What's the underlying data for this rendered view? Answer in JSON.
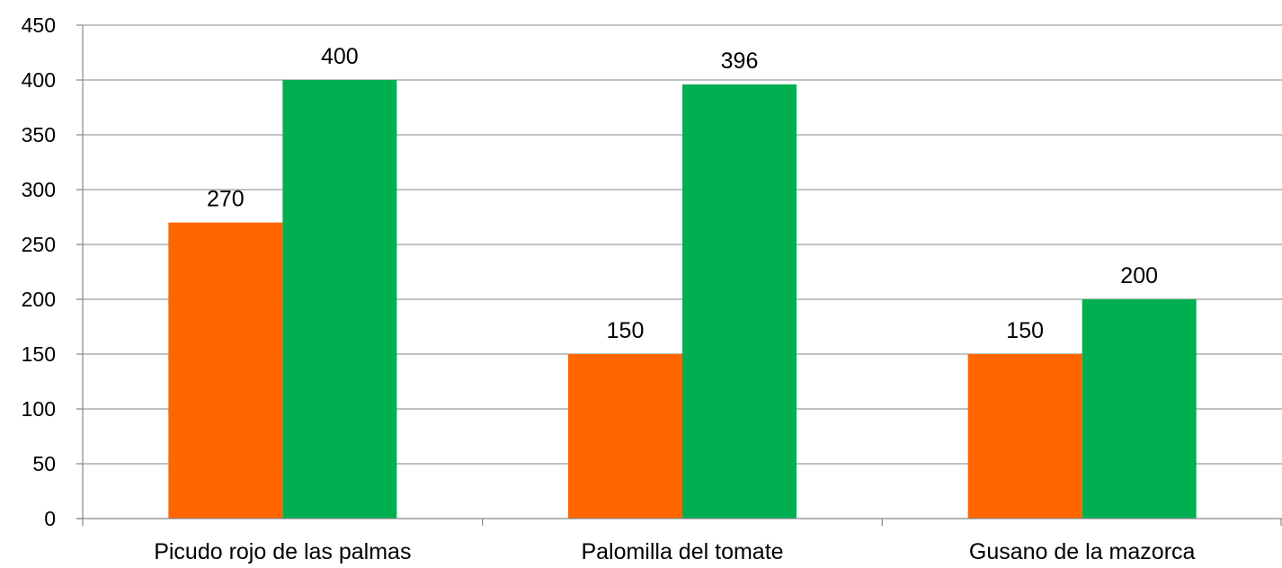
{
  "chart_data": {
    "type": "bar",
    "title": "",
    "xlabel": "",
    "ylabel": "",
    "categories": [
      "Picudo rojo de las palmas",
      "Palomilla del tomate",
      "Gusano de la mazorca"
    ],
    "series": [
      {
        "color": "#ff6600",
        "values": [
          270,
          150,
          150
        ]
      },
      {
        "color": "#00b050",
        "values": [
          400,
          396,
          200
        ]
      }
    ],
    "ylim": [
      0,
      450
    ],
    "ystep": 50,
    "yticks": [
      "0",
      "50",
      "100",
      "150",
      "200",
      "250",
      "300",
      "350",
      "400",
      "450"
    ],
    "grid": true,
    "legend": "none",
    "data_labels": true
  }
}
